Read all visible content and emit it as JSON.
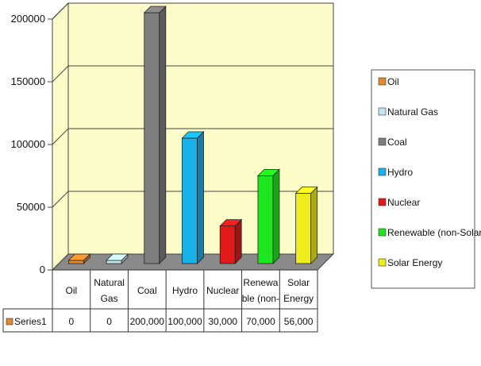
{
  "chart_data": {
    "type": "bar",
    "style": "3d-column",
    "categories": [
      "Oil",
      "Natural Gas",
      "Coal",
      "Hydro",
      "Nuclear",
      "Renewable (non-Solar)",
      "Solar Energy"
    ],
    "axis_labels": [
      [
        "Oil"
      ],
      [
        "Natural",
        "Gas"
      ],
      [
        "Coal"
      ],
      [
        "Hydro"
      ],
      [
        "Nuclear"
      ],
      [
        "Renewa",
        "ble (non-"
      ],
      [
        "Solar",
        "Energy"
      ]
    ],
    "series": [
      {
        "name": "Series1",
        "values": [
          0,
          0,
          200000,
          100000,
          30000,
          70000,
          56000
        ]
      }
    ],
    "value_labels": [
      "0",
      "0",
      "200,000",
      "100,000",
      "30,000",
      "70,000",
      "56,000"
    ],
    "y_ticks": [
      "0",
      "50000",
      "100000",
      "150000",
      "200000"
    ],
    "ylim": [
      0,
      200000
    ],
    "grid": true,
    "legend_position": "right",
    "legend": [
      "Oil",
      "Natural Gas",
      "Coal",
      "Hydro",
      "Nuclear",
      "Renewable (non-Solar)",
      "Solar Energy"
    ],
    "colors": [
      "#e08a2c",
      "#bfe6f2",
      "#7f7f7f",
      "#19b1ea",
      "#e11a1a",
      "#1ee61e",
      "#efec1c"
    ],
    "data_table": true
  }
}
